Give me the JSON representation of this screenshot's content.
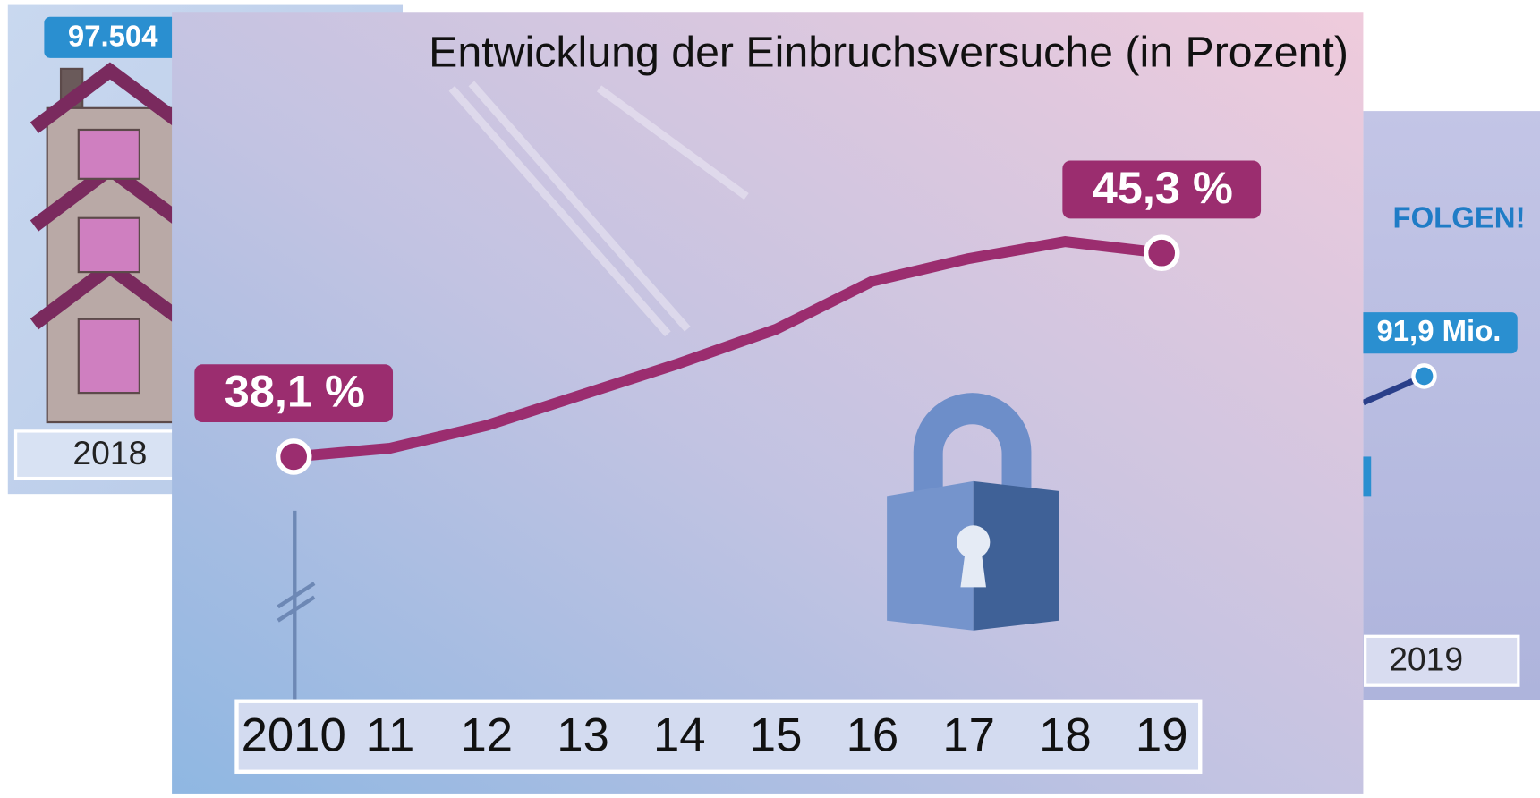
{
  "chart_data": {
    "type": "line",
    "title": "Entwicklung der Einbruchsversuche (in Prozent)",
    "categories": [
      "2010",
      "11",
      "12",
      "13",
      "14",
      "15",
      "16",
      "17",
      "18",
      "19"
    ],
    "values": [
      38.1,
      38.4,
      39.2,
      40.3,
      41.4,
      42.6,
      44.3,
      45.1,
      45.7,
      45.3
    ],
    "value_labels": [
      "38,1 %",
      null,
      null,
      null,
      null,
      null,
      null,
      null,
      null,
      "45,3 %"
    ],
    "color": "#9b2d6f"
  },
  "left_panel": {
    "value_label": "97.504",
    "year": "2018"
  },
  "right_panel": {
    "heading": "FOLGEN!",
    "value_label": "91,9 Mio.",
    "year": "2019"
  }
}
